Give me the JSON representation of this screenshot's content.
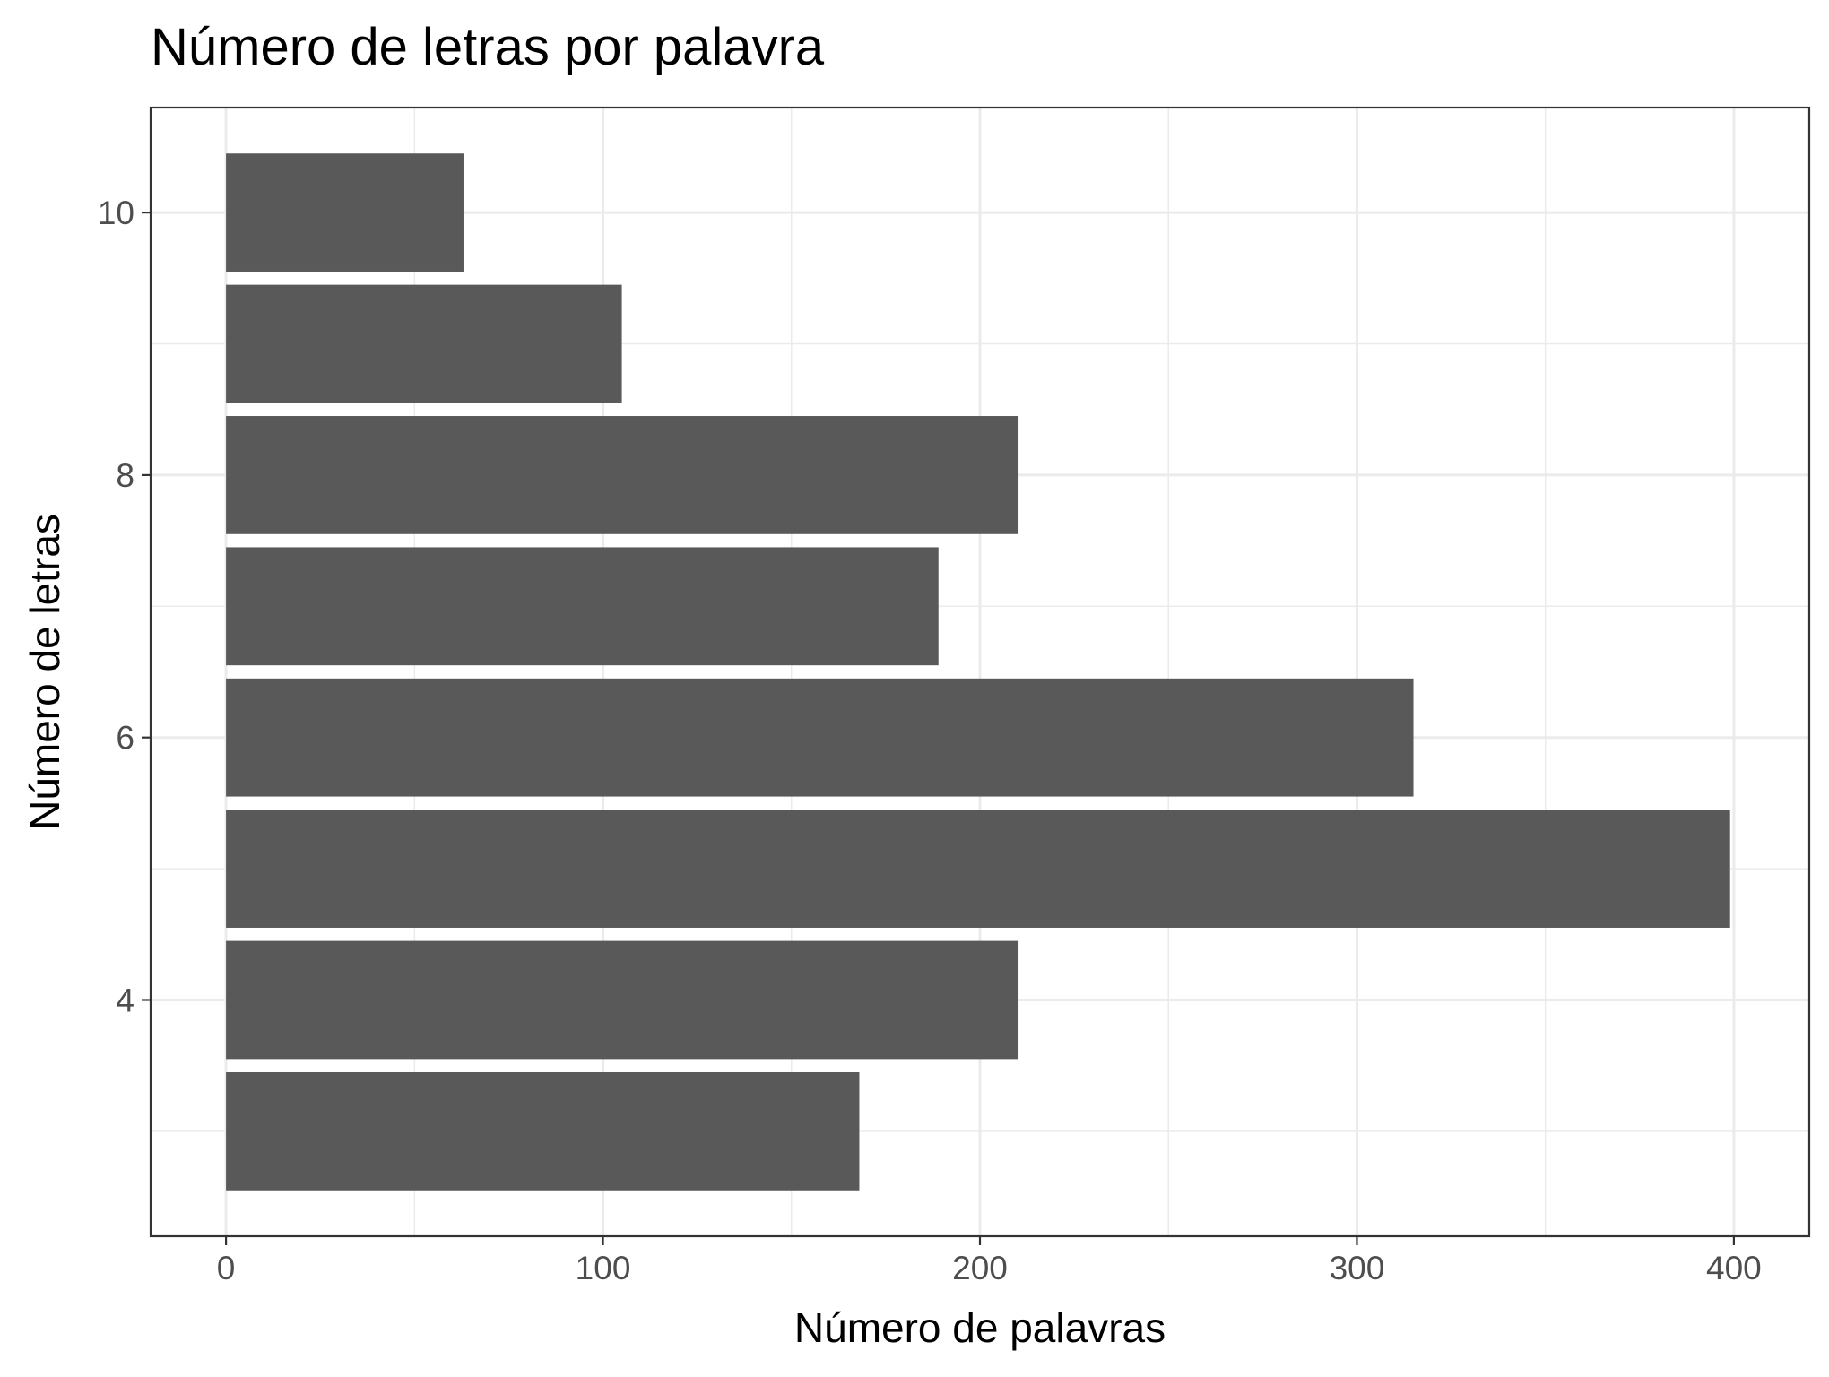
{
  "chart_data": {
    "type": "bar",
    "orientation": "horizontal",
    "title": "Número de letras por palavra",
    "xlabel": "Número de palavras",
    "ylabel": "Número de letras",
    "categories": [
      3,
      4,
      5,
      6,
      7,
      8,
      9,
      10
    ],
    "values": [
      168,
      210,
      399,
      315,
      189,
      210,
      105,
      63
    ],
    "xlim": [
      -20,
      420
    ],
    "ylim": [
      2.2,
      10.8
    ],
    "xticks": [
      0,
      100,
      200,
      300,
      400
    ],
    "xtick_labels": [
      "0",
      "100",
      "200",
      "300",
      "400"
    ],
    "yticks": [
      4,
      6,
      8,
      10
    ],
    "ytick_labels": [
      "4",
      "6",
      "8",
      "10"
    ],
    "grid": true,
    "theme": "bw",
    "bar_color": "#595959",
    "grid_color": "#ebebeb",
    "panel_border_color": "#333333"
  }
}
